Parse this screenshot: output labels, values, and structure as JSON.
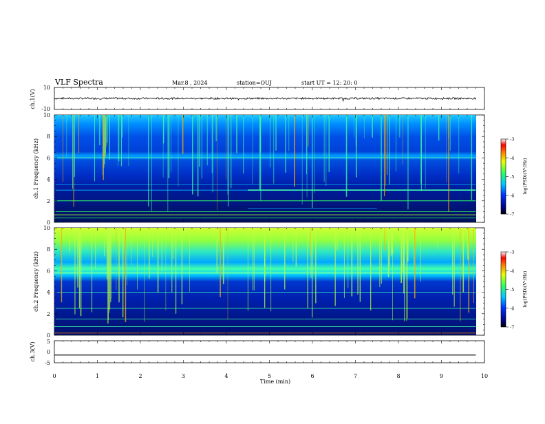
{
  "header": {
    "title": "VLF Spectra",
    "date": "Mar.8 , 2024",
    "station": "station=OUJ",
    "start_time": "start UT = 12: 20: 0"
  },
  "colorbar": {
    "label": "log(PSD)(V²/Hz)",
    "ticks": [
      "-3",
      "-4",
      "-5",
      "-6",
      "-7"
    ],
    "min": -7,
    "max": -3
  },
  "chart_data": [
    {
      "type": "line",
      "name": "waveform-ch1",
      "ylabel": "ch.1(V)",
      "ylim": [
        -10,
        10
      ],
      "y_ticks": [
        "10",
        "-10"
      ],
      "x_range_min": [
        0,
        9.8
      ]
    },
    {
      "type": "heatmap",
      "name": "spectrogram-ch1",
      "ylabel": "ch.1 Frequency (kHz)",
      "ylim": [
        0,
        10
      ],
      "y_ticks": [
        "0",
        "2",
        "4",
        "6",
        "8",
        "10"
      ],
      "x_range_min": [
        0,
        9.8
      ],
      "color_scale": "log(PSD)(V²/Hz) from -7 to -3"
    },
    {
      "type": "heatmap",
      "name": "spectrogram-ch2",
      "ylabel": "ch.2 Frequency (kHz)",
      "ylim": [
        0,
        10
      ],
      "y_ticks": [
        "0",
        "2",
        "4",
        "6",
        "8",
        "10"
      ],
      "x_range_min": [
        0,
        9.8
      ],
      "color_scale": "log(PSD)(V²/Hz) from -7 to -3"
    },
    {
      "type": "line",
      "name": "waveform-ch3",
      "ylabel": "ch.3(V)",
      "ylim": [
        -5,
        5
      ],
      "y_ticks": [
        "5",
        "0",
        "-5"
      ],
      "x_range_min": [
        0,
        9.8
      ],
      "values_constant": -1.5
    }
  ],
  "xaxis": {
    "label": "Time (min)",
    "ticks": [
      "0",
      "1",
      "2",
      "3",
      "4",
      "5",
      "6",
      "7",
      "8",
      "9",
      "10"
    ],
    "range": [
      0,
      10
    ]
  }
}
